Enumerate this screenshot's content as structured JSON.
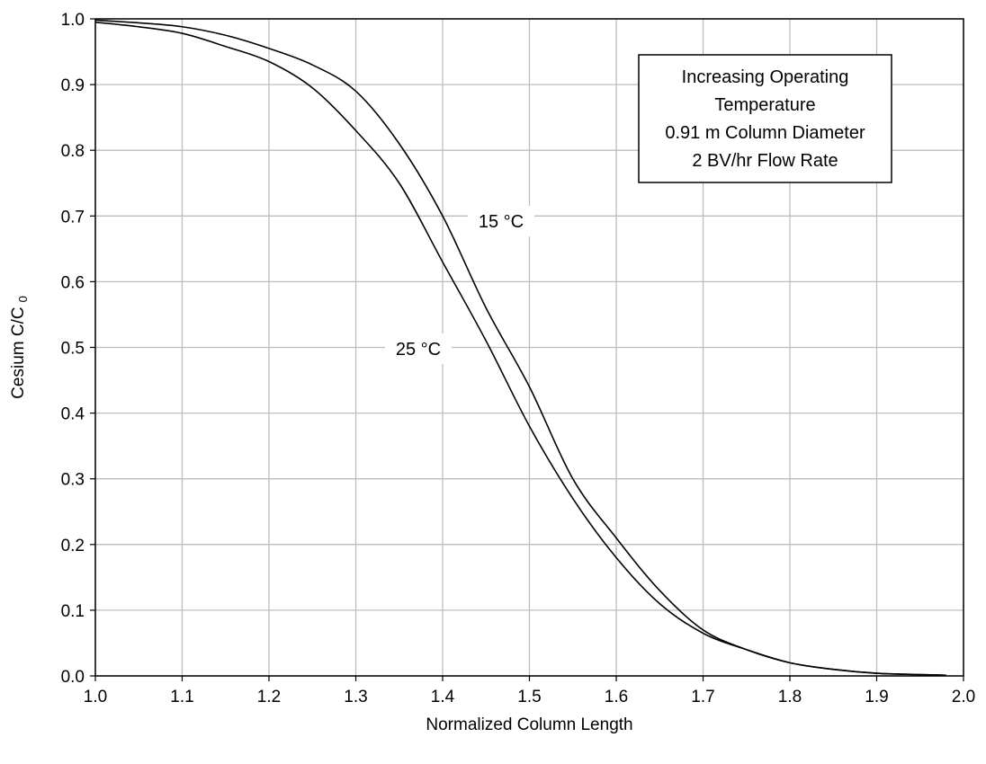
{
  "chart_data": {
    "type": "line",
    "xlabel": "Normalized Column Length",
    "ylabel": "Cesium C/C",
    "ylabel_subscript": "0",
    "xlim": [
      1.0,
      2.0
    ],
    "ylim": [
      0.0,
      1.0
    ],
    "x_ticks": [
      "1.0",
      "1.1",
      "1.2",
      "1.3",
      "1.4",
      "1.5",
      "1.6",
      "1.7",
      "1.8",
      "1.9",
      "2.0"
    ],
    "y_ticks": [
      "0.0",
      "0.1",
      "0.2",
      "0.3",
      "0.4",
      "0.5",
      "0.6",
      "0.7",
      "0.8",
      "0.9",
      "1.0"
    ],
    "grid": true,
    "annotation_lines": [
      "Increasing Operating",
      "Temperature",
      "0.91 m Column Diameter",
      "2 BV/hr Flow Rate"
    ],
    "series": [
      {
        "name": "15 °C",
        "x": [
          1.0,
          1.05,
          1.1,
          1.15,
          1.2,
          1.25,
          1.3,
          1.35,
          1.4,
          1.45,
          1.5,
          1.55,
          1.6,
          1.65,
          1.7,
          1.75,
          1.8,
          1.85,
          1.9,
          1.95,
          1.98
        ],
        "y": [
          0.998,
          0.994,
          0.988,
          0.975,
          0.955,
          0.93,
          0.89,
          0.81,
          0.7,
          0.56,
          0.44,
          0.3,
          0.21,
          0.13,
          0.07,
          0.04,
          0.02,
          0.01,
          0.004,
          0.002,
          0.001
        ]
      },
      {
        "name": "25 °C",
        "x": [
          1.0,
          1.05,
          1.1,
          1.15,
          1.2,
          1.25,
          1.3,
          1.35,
          1.4,
          1.45,
          1.5,
          1.55,
          1.6,
          1.65,
          1.7,
          1.75,
          1.8,
          1.85,
          1.9,
          1.95,
          1.98
        ],
        "y": [
          0.995,
          0.988,
          0.978,
          0.958,
          0.935,
          0.895,
          0.83,
          0.75,
          0.63,
          0.51,
          0.38,
          0.27,
          0.18,
          0.11,
          0.065,
          0.04,
          0.02,
          0.01,
          0.004,
          0.002,
          0.001
        ]
      }
    ]
  }
}
